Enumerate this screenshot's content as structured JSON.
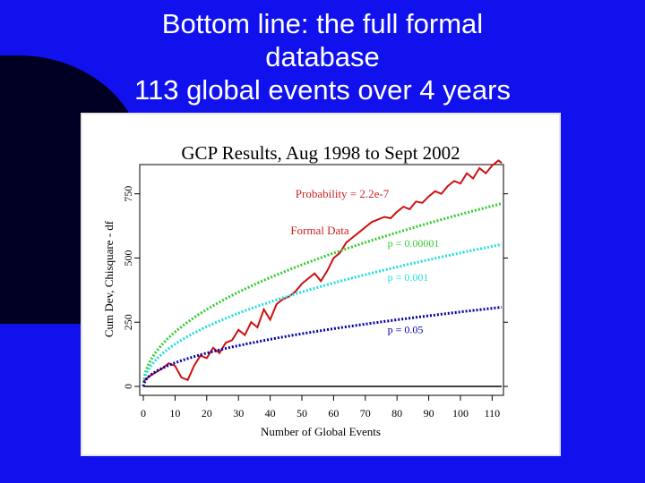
{
  "slide": {
    "title_lines": [
      "Bottom line: the full formal",
      "database",
      "113 global events over 4 years"
    ]
  },
  "chart_data": {
    "type": "line",
    "title": "GCP Results, Aug 1998 to Sept 2002",
    "xlabel": "Number of Global Events",
    "ylabel": "Cum Dev, Chisquare - df",
    "xlim": [
      0,
      113
    ],
    "ylim": [
      0,
      850
    ],
    "x_ticks": [
      0,
      10,
      20,
      30,
      40,
      50,
      60,
      70,
      80,
      90,
      100,
      110
    ],
    "y_ticks": [
      0,
      250,
      500,
      750
    ],
    "annotations": {
      "probability": "Probability = 2.2e-7",
      "formal_data": "Formal Data"
    },
    "series": [
      {
        "name": "Formal Data",
        "color": "#cc1111",
        "style": "solid",
        "x": [
          0,
          2,
          4,
          6,
          8,
          10,
          12,
          14,
          16,
          18,
          20,
          22,
          24,
          26,
          28,
          30,
          32,
          34,
          36,
          38,
          40,
          42,
          44,
          46,
          48,
          50,
          52,
          54,
          56,
          58,
          60,
          62,
          64,
          66,
          68,
          70,
          72,
          74,
          76,
          78,
          80,
          82,
          84,
          86,
          88,
          90,
          92,
          94,
          96,
          98,
          100,
          102,
          104,
          106,
          108,
          110,
          112,
          113
        ],
        "y": [
          20,
          40,
          55,
          70,
          90,
          80,
          35,
          25,
          80,
          120,
          110,
          150,
          130,
          170,
          180,
          220,
          200,
          250,
          230,
          300,
          260,
          320,
          340,
          350,
          370,
          400,
          420,
          440,
          410,
          450,
          500,
          520,
          560,
          580,
          600,
          620,
          640,
          650,
          660,
          655,
          680,
          700,
          690,
          720,
          715,
          740,
          760,
          750,
          780,
          800,
          790,
          830,
          810,
          850,
          830,
          860,
          880,
          870
        ]
      },
      {
        "name": "p = 0.00001",
        "color": "#33cc33",
        "style": "dotted",
        "formula": "67*sqrt(x)",
        "label": "p = 0.00001"
      },
      {
        "name": "p = 0.001",
        "color": "#22dddd",
        "style": "dotted",
        "formula": "52*sqrt(x)",
        "label": "p = 0.001"
      },
      {
        "name": "p = 0.05",
        "color": "#0000aa",
        "style": "dotted",
        "formula": "29*sqrt(x)",
        "label": "p = 0.05"
      }
    ]
  }
}
